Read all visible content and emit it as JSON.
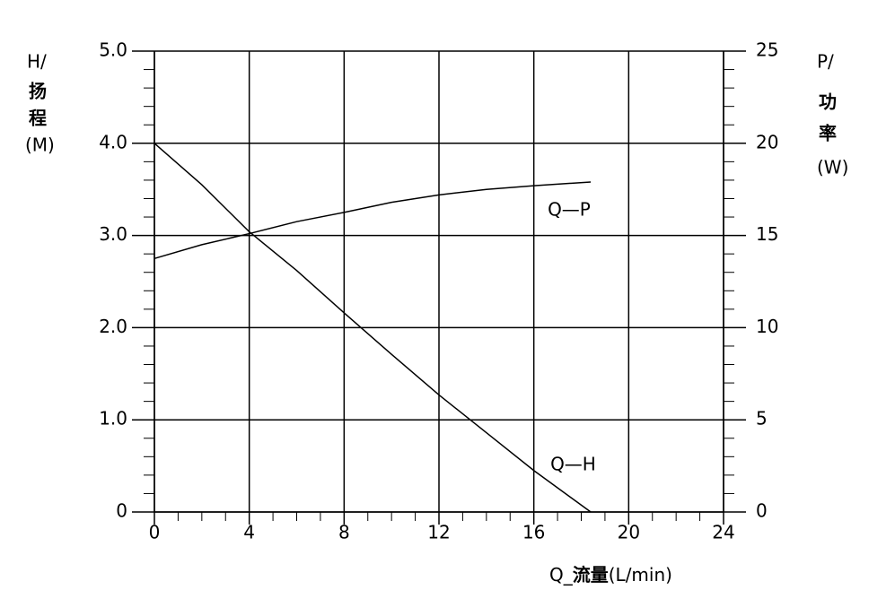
{
  "chart_data": {
    "type": "line",
    "y_label_lines": [
      "H/",
      "扬",
      "程",
      "(M)"
    ],
    "y2_label_lines": [
      "P/",
      "功",
      "率",
      "(W)"
    ],
    "x_label_parts": [
      "Q_",
      "流量",
      "(L/min)"
    ],
    "x": [
      0,
      2,
      4,
      6,
      8,
      10,
      12,
      14,
      16,
      18.4
    ],
    "series": [
      {
        "name": "Q—H",
        "color": "#000000",
        "values": [
          4.0,
          3.55,
          3.04,
          2.62,
          2.16,
          1.71,
          1.27,
          0.86,
          0.45,
          0
        ]
      },
      {
        "name": "Q—P",
        "color": "#000000",
        "axis": "y2",
        "values": [
          13.75,
          14.5,
          15.1,
          15.75,
          16.25,
          16.8,
          17.2,
          17.5,
          17.7,
          17.9
        ]
      }
    ],
    "xlim": [
      0,
      24
    ],
    "xticks": [
      0,
      4,
      8,
      12,
      16,
      20,
      24
    ],
    "ylim": [
      0,
      5
    ],
    "yticks": [
      0,
      {
        "value": 1,
        "label": "1.0"
      },
      {
        "value": 2,
        "label": "2.0"
      },
      {
        "value": 3,
        "label": "3.0"
      },
      {
        "value": 4,
        "label": "4.0"
      },
      {
        "value": 5,
        "label": "5.0"
      }
    ],
    "y2lim": [
      0,
      25
    ],
    "y2ticks": [
      0,
      5,
      10,
      15,
      20,
      25
    ],
    "grid": true
  }
}
